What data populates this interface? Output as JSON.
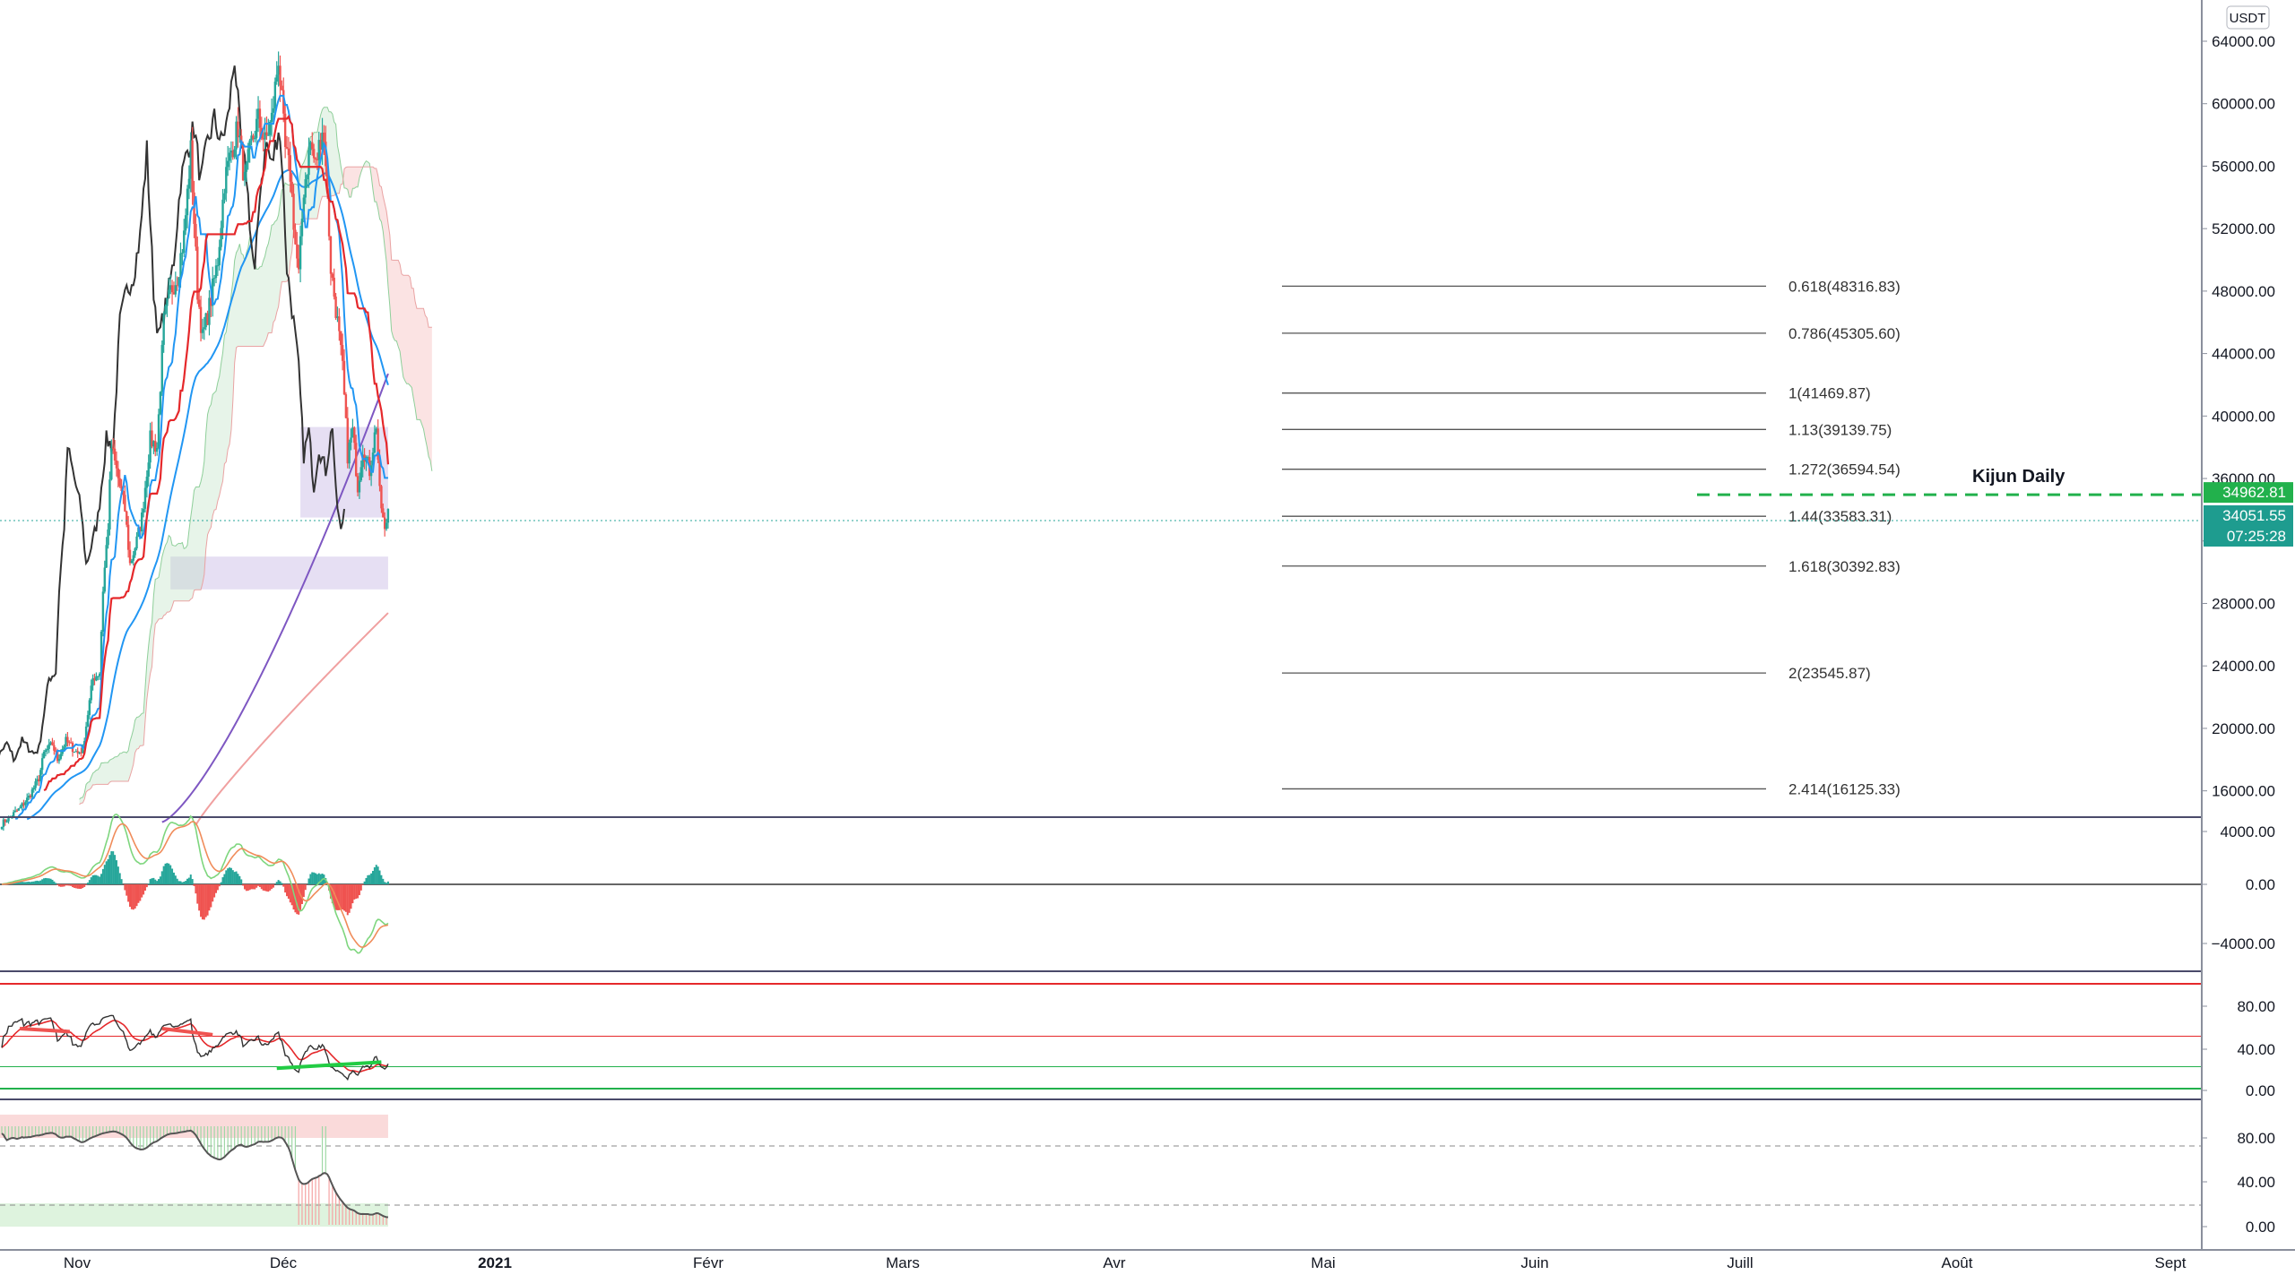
{
  "symbol_badge": "USDT",
  "annotation": "Kijun Daily",
  "colors": {
    "up": "#26a69a",
    "down": "#ef5350",
    "tenkan": "#2196f3",
    "kijun": "#e5282b",
    "chikou": "#333333",
    "ma_long": "#7e57c2",
    "ma_vlong": "#f0a0a0",
    "cloud_bull": "#b9dfc0",
    "cloud_bear": "#f6c1c1",
    "zone": "#d1c4e9",
    "kijun_daily": "#22b14c"
  },
  "chart_data": {
    "type": "candlestick",
    "price_axis": {
      "ticks": [
        "64000.00",
        "60000.00",
        "56000.00",
        "52000.00",
        "48000.00",
        "44000.00",
        "40000.00",
        "36000.00",
        "32000.00",
        "28000.00",
        "24000.00",
        "20000.00",
        "16000.00"
      ],
      "ylim": [
        14000,
        66500
      ]
    },
    "time_axis": {
      "labels": [
        "Nov",
        "Déc",
        "2021",
        "Févr",
        "Mars",
        "Avr",
        "Mai",
        "Juin",
        "Juill",
        "Août",
        "Sept"
      ]
    },
    "fib_levels": [
      {
        "label": "0.618(48316.83)",
        "value": 48316.83
      },
      {
        "label": "0.786(45305.60)",
        "value": 45305.6
      },
      {
        "label": "1(41469.87)",
        "value": 41469.87
      },
      {
        "label": "1.13(39139.75)",
        "value": 39139.75
      },
      {
        "label": "1.272(36594.54)",
        "value": 36594.54
      },
      {
        "label": "1.44(33583.31)",
        "value": 33583.31
      },
      {
        "label": "1.618(30392.83)",
        "value": 30392.83
      },
      {
        "label": "2(23545.87)",
        "value": 23545.87
      },
      {
        "label": "2.414(16125.33)",
        "value": 16125.33
      }
    ],
    "price_tags": [
      {
        "text": "34962.81",
        "value": 34962.81,
        "color": "#22b14c"
      },
      {
        "text": "34051.55",
        "value": 34051.55,
        "color": "#1e9c8f"
      },
      {
        "text": "07:25:28",
        "color": "#1e9c8f"
      }
    ],
    "kijun_daily": 34962.81,
    "last_price": 34051.55,
    "zones": [
      {
        "from_day": 177,
        "to_day": 229,
        "low": 33500,
        "high": 39300
      },
      {
        "from_day": 100,
        "to_day": 229,
        "low": 28900,
        "high": 31000
      }
    ],
    "close_key": [
      [
        0,
        13900
      ],
      [
        10,
        14800
      ],
      [
        16,
        15600
      ],
      [
        22,
        16800
      ],
      [
        25,
        18400
      ],
      [
        30,
        19000
      ],
      [
        33,
        18000
      ],
      [
        38,
        19200
      ],
      [
        45,
        18400
      ],
      [
        48,
        18700
      ],
      [
        54,
        23200
      ],
      [
        58,
        23600
      ],
      [
        60,
        28900
      ],
      [
        63,
        33000
      ],
      [
        65,
        38000
      ],
      [
        69,
        36000
      ],
      [
        73,
        34000
      ],
      [
        76,
        30500
      ],
      [
        80,
        32000
      ],
      [
        83,
        33500
      ],
      [
        85,
        35500
      ],
      [
        88,
        38500
      ],
      [
        92,
        38000
      ],
      [
        96,
        46000
      ],
      [
        100,
        48000
      ],
      [
        104,
        49000
      ],
      [
        108,
        51500
      ],
      [
        112,
        57000
      ],
      [
        116,
        48000
      ],
      [
        119,
        45000
      ],
      [
        124,
        47500
      ],
      [
        128,
        50000
      ],
      [
        132,
        55000
      ],
      [
        136,
        57000
      ],
      [
        140,
        58500
      ],
      [
        144,
        55000
      ],
      [
        148,
        57500
      ],
      [
        152,
        59000
      ],
      [
        156,
        57500
      ],
      [
        160,
        59000
      ],
      [
        164,
        63000
      ],
      [
        168,
        57000
      ],
      [
        171,
        55500
      ],
      [
        174,
        51000
      ],
      [
        176,
        49000
      ],
      [
        179,
        54500
      ],
      [
        183,
        57500
      ],
      [
        186,
        56000
      ],
      [
        190,
        58500
      ],
      [
        192,
        56500
      ],
      [
        195,
        49500
      ],
      [
        199,
        46000
      ],
      [
        202,
        43000
      ],
      [
        205,
        37500
      ],
      [
        208,
        39000
      ],
      [
        211,
        35500
      ],
      [
        214,
        38000
      ],
      [
        218,
        36500
      ],
      [
        222,
        39500
      ],
      [
        224,
        35000
      ],
      [
        227,
        32500
      ],
      [
        229,
        34051.55
      ]
    ],
    "subpanes": [
      {
        "name": "macd",
        "ticks": [
          "4000.00",
          "0.00",
          "−4000.00"
        ]
      },
      {
        "name": "rsi",
        "ticks": [
          "80.00",
          "40.00",
          "0.00"
        ]
      },
      {
        "name": "stoch",
        "ticks": [
          "80.00",
          "40.00",
          "0.00"
        ]
      }
    ]
  }
}
